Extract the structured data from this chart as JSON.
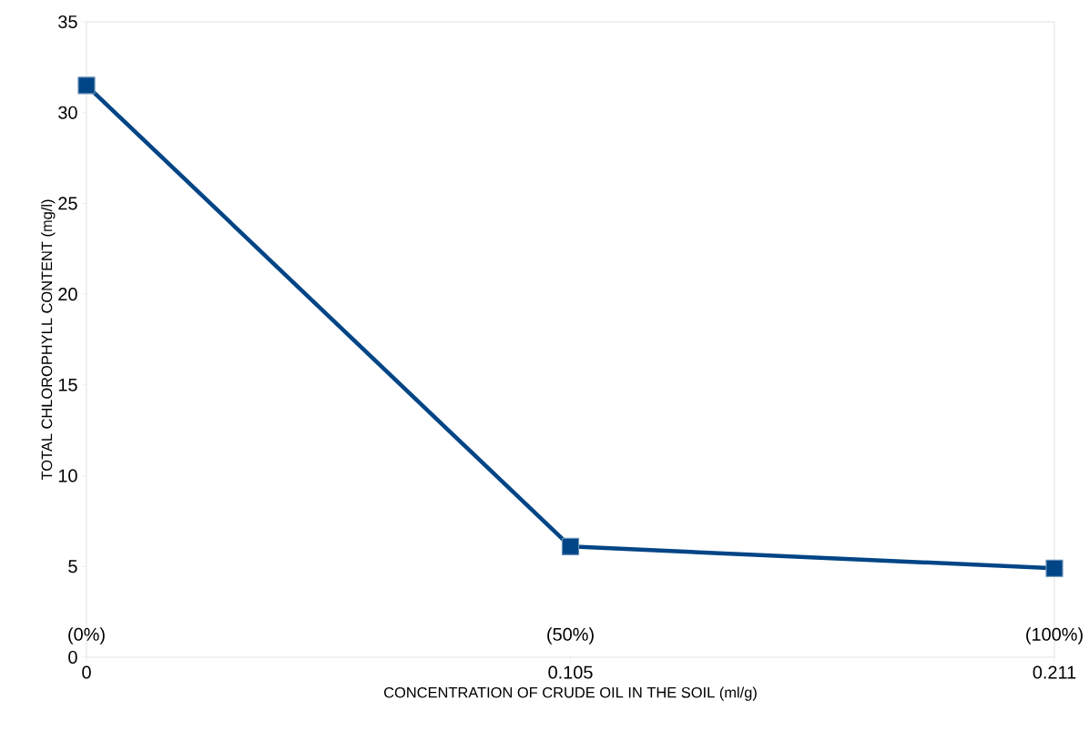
{
  "chart_data": {
    "type": "line",
    "xlabel": "CONCENTRATION OF CRUDE OIL IN THE SOIL (ml/g)",
    "ylabel": "TOTAL CHLOROPHYLL CONTENT (mg/l)",
    "categories": [
      "0",
      "0.105",
      "0.211"
    ],
    "series": [
      {
        "color": "#004586",
        "values": [
          31.5,
          6.1,
          4.9
        ]
      }
    ],
    "ylim": [
      0,
      35
    ],
    "yticks": [
      0,
      5,
      10,
      15,
      20,
      25,
      30,
      35
    ],
    "marker": "square",
    "line_style": "solid",
    "grid": false,
    "annotations": [
      "(0%)",
      "(50%)",
      "(100%)"
    ]
  }
}
